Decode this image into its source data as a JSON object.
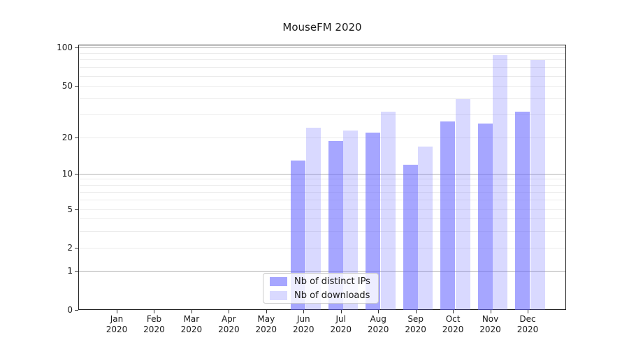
{
  "chart_data": {
    "type": "bar",
    "title": "MouseFM 2020",
    "categories": [
      "Jan 2020",
      "Feb 2020",
      "Mar 2020",
      "Apr 2020",
      "May 2020",
      "Jun 2020",
      "Jul 2020",
      "Aug 2020",
      "Sep 2020",
      "Oct 2020",
      "Nov 2020",
      "Dec 2020"
    ],
    "series": [
      {
        "name": "Nb of distinct IPs",
        "values": [
          null,
          null,
          null,
          null,
          null,
          13,
          19,
          22,
          12,
          27,
          26,
          32
        ]
      },
      {
        "name": "Nb of downloads",
        "values": [
          null,
          null,
          null,
          null,
          null,
          24,
          23,
          32,
          17,
          40,
          88,
          80
        ]
      }
    ],
    "xlabel": "",
    "ylabel": "",
    "yscale": "symlog",
    "yticks": [
      0,
      1,
      2,
      5,
      10,
      20,
      50,
      100
    ],
    "ylim": [
      0,
      105
    ],
    "grid": true,
    "gridlines": {
      "major": [
        1,
        10,
        100
      ],
      "minor": [
        2,
        3,
        4,
        5,
        6,
        7,
        8,
        9,
        20,
        30,
        40,
        50,
        60,
        70,
        80,
        90
      ]
    },
    "legend_position": "lower center",
    "colors": {
      "bar_distinct_ips": "#a6a6f7",
      "bar_downloads": "#d9d9f7",
      "base_color": "#6666ff",
      "grid_major": "#b0b0b0",
      "grid_minor": "#ebebeb"
    }
  }
}
